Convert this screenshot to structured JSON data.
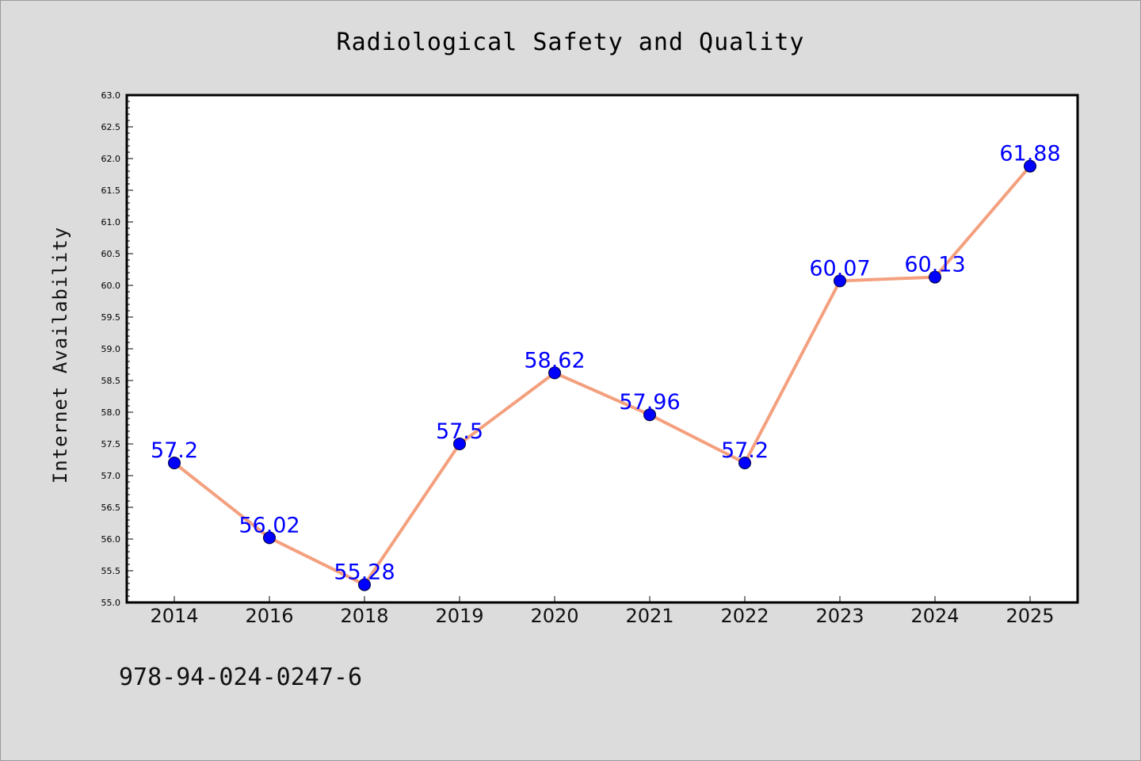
{
  "chart_data": {
    "type": "line",
    "title": "Radiological Safety and Quality",
    "xlabel": "",
    "ylabel": "Internet Availability",
    "categories": [
      "2014",
      "2016",
      "2018",
      "2019",
      "2020",
      "2021",
      "2022",
      "2023",
      "2024",
      "2025"
    ],
    "series": [
      {
        "values": [
          57.2,
          56.02,
          55.28,
          57.5,
          58.62,
          57.96,
          57.2,
          60.07,
          60.13,
          61.88
        ],
        "labels": [
          "57.2",
          "56.02",
          "55.28",
          "57.5",
          "58.62",
          "57.96",
          "57.2",
          "60.07",
          "60.13",
          "61.88"
        ]
      }
    ],
    "ylim": [
      55.0,
      63.0
    ],
    "yticks": [
      "55.0",
      "55.5",
      "56.0",
      "56.5",
      "57.0",
      "57.5",
      "58.0",
      "58.5",
      "59.0",
      "59.5",
      "60.0",
      "60.5",
      "61.0",
      "61.5",
      "62.0",
      "62.5",
      "63.0"
    ],
    "grid": false,
    "line_color": "#f4a07e",
    "marker_color": "#0000ff",
    "label_color": "#0000ff"
  },
  "footer": {
    "isbn": "978-94-024-0247-6"
  }
}
